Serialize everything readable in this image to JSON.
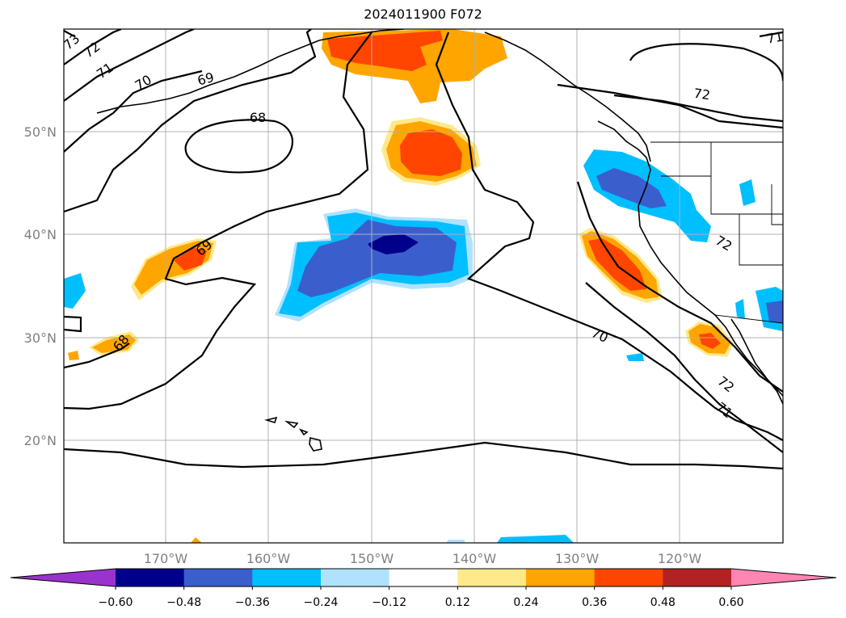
{
  "title": "2024011900 F072",
  "map": {
    "lat_labels": [
      "50°N",
      "40°N",
      "30°N",
      "20°N"
    ],
    "lon_labels": [
      "170°W",
      "160°W",
      "150°W",
      "140°W",
      "130°W",
      "120°W"
    ],
    "contour_labels": [
      "73",
      "72",
      "71",
      "70",
      "69",
      "68",
      "69",
      "68",
      "72",
      "72",
      "72",
      "71",
      "70",
      "71"
    ]
  },
  "colorbar": {
    "tick_labels": [
      "−0.60",
      "−0.48",
      "−0.36",
      "−0.24",
      "−0.12",
      "0.12",
      "0.24",
      "0.36",
      "0.48",
      "0.60"
    ],
    "colors": [
      "#9933cc",
      "#00008b",
      "#3a5fcd",
      "#00bfff",
      "#b0e2ff",
      "#ffffff",
      "#ffe98c",
      "#ffa500",
      "#ff4500",
      "#b22222",
      "#ff85b3"
    ]
  }
}
